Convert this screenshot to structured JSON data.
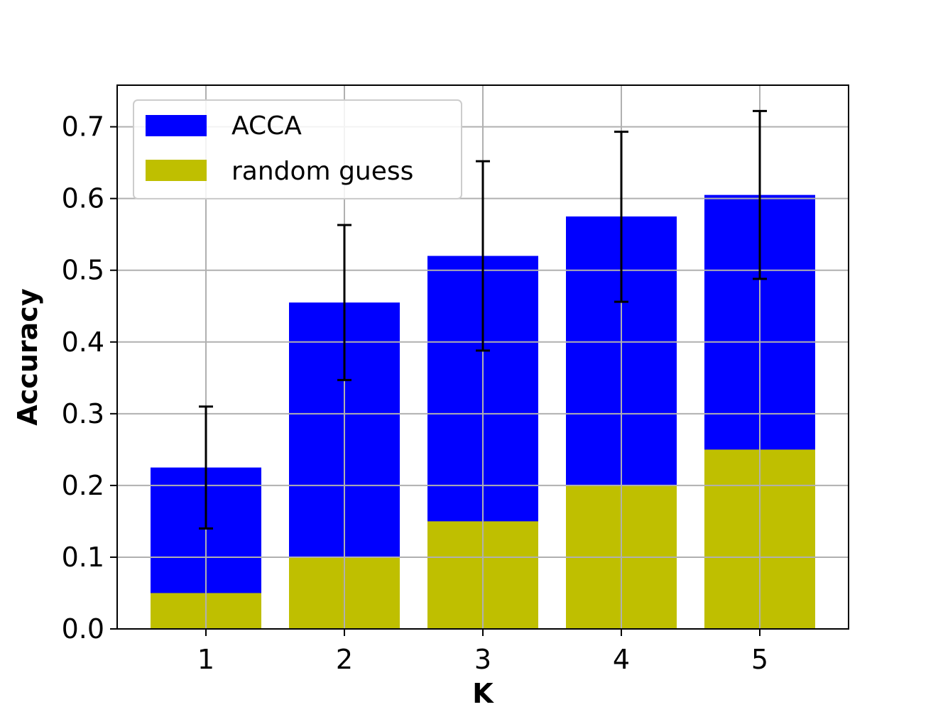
{
  "chart_data": {
    "type": "bar",
    "stacked": false,
    "categories": [
      "1",
      "2",
      "3",
      "4",
      "5"
    ],
    "series": [
      {
        "name": "ACCA",
        "color": "#0000ff",
        "values": [
          0.225,
          0.455,
          0.52,
          0.575,
          0.605
        ],
        "error_low": [
          0.14,
          0.347,
          0.388,
          0.456,
          0.488
        ],
        "error_high": [
          0.31,
          0.563,
          0.652,
          0.693,
          0.722
        ]
      },
      {
        "name": "random guess",
        "color": "#bfbf00",
        "values": [
          0.05,
          0.1,
          0.15,
          0.2,
          0.25
        ]
      }
    ],
    "xlabel": "K",
    "ylabel": "Accuracy",
    "ylim": [
      0,
      0.758
    ],
    "yticks": [
      "0.0",
      "0.1",
      "0.2",
      "0.3",
      "0.4",
      "0.5",
      "0.6",
      "0.7"
    ],
    "grid": true,
    "legend_position": "top-left"
  }
}
